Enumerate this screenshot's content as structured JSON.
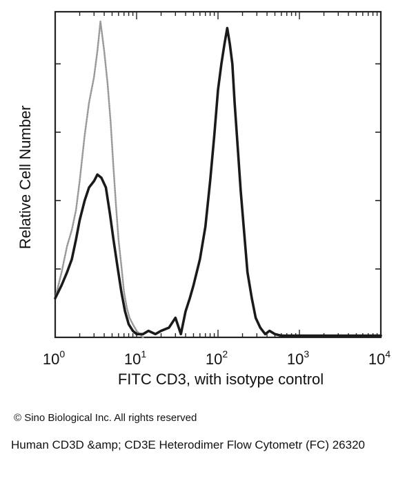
{
  "chart_data": {
    "type": "line",
    "title": "",
    "xlabel": "FITC CD3, with isotype control",
    "ylabel": "Relative Cell Number",
    "x_scale": "log",
    "xlim": [
      1,
      10000
    ],
    "ylim": [
      0,
      100
    ],
    "x_tick_labels": [
      {
        "base": "10",
        "exp": "0",
        "value": 1
      },
      {
        "base": "10",
        "exp": "1",
        "value": 10
      },
      {
        "base": "10",
        "exp": "2",
        "value": 100
      },
      {
        "base": "10",
        "exp": "3",
        "value": 1000
      },
      {
        "base": "10",
        "exp": "4",
        "value": 10000
      }
    ],
    "y_ticks": [
      0,
      21,
      42,
      63,
      84
    ],
    "grid": false,
    "legend": "none",
    "series": [
      {
        "style": "dotted-light",
        "color": "#9a9a9a",
        "x": [
          1.0,
          1.2,
          1.4,
          1.6,
          1.8,
          2.0,
          2.3,
          2.6,
          3.0,
          3.3,
          3.6,
          4.0,
          4.4,
          4.8,
          5.2,
          5.6,
          6.0,
          6.5,
          7.0,
          7.6,
          8.2,
          9.0,
          10,
          12
        ],
        "y": [
          12,
          20,
          28,
          33,
          39,
          48,
          62,
          72,
          80,
          88,
          97,
          88,
          78,
          66,
          52,
          40,
          30,
          22,
          14,
          9,
          6,
          4,
          2,
          0
        ]
      },
      {
        "style": "solid-dark",
        "color": "#1a1a1a",
        "x": [
          1.0,
          1.2,
          1.4,
          1.6,
          1.8,
          2.0,
          2.3,
          2.6,
          3.0,
          3.3,
          3.7,
          4.2,
          4.7,
          5.2,
          5.8,
          6.5,
          7.2,
          8.0,
          9.0,
          10,
          12,
          14,
          17,
          20,
          25,
          30,
          35,
          40,
          45,
          50,
          60,
          70,
          80,
          90,
          100,
          110,
          120,
          130,
          140,
          150,
          160,
          175,
          190,
          210,
          230,
          260,
          290,
          330,
          380,
          430,
          500,
          600,
          800,
          1000,
          10000
        ],
        "y": [
          12,
          16,
          20,
          24,
          30,
          36,
          42,
          46,
          48,
          50,
          49,
          46,
          38,
          30,
          22,
          14,
          8,
          4,
          2,
          1,
          1,
          2,
          1,
          2,
          3,
          6,
          1,
          8,
          12,
          16,
          24,
          34,
          48,
          62,
          76,
          84,
          90,
          95,
          90,
          84,
          72,
          58,
          45,
          32,
          20,
          12,
          6,
          3,
          1,
          2,
          1,
          0.5,
          0.5,
          0.5,
          0.5
        ]
      }
    ]
  },
  "copyright": "© Sino Biological Inc. All rights reserved",
  "caption": "Human CD3D &amp; CD3E Heterodimer Flow Cytometr (FC) 26320"
}
